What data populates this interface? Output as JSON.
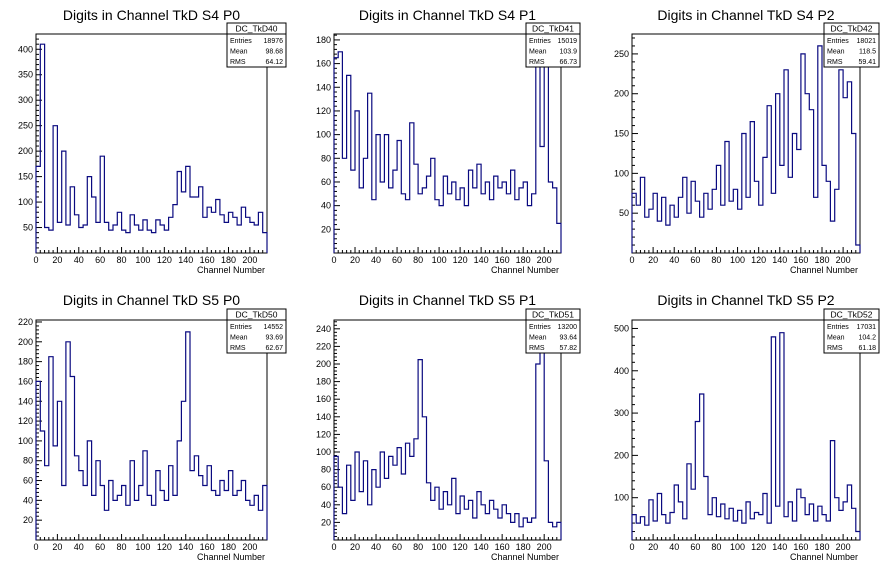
{
  "colors": {
    "line": "#0a0a80",
    "axis": "#000000",
    "background": "#ffffff"
  },
  "chart_data": [
    {
      "type": "histogram",
      "title": "Digits in Channel TkD S4 P0",
      "xlabel": "Channel Number",
      "xlim": [
        0,
        216
      ],
      "ylim": [
        0,
        430
      ],
      "xticks": [
        "0",
        "20",
        "40",
        "60",
        "80",
        "100",
        "120",
        "140",
        "160",
        "180",
        "200"
      ],
      "yticks": [
        "50",
        "100",
        "150",
        "200",
        "250",
        "300",
        "350",
        "400"
      ],
      "stats": {
        "name": "DC_TkD40",
        "entries_label": "Entries",
        "entries": "18976",
        "mean_label": "Mean",
        "mean": "98.68",
        "rms_label": "RMS",
        "rms": "64.12"
      },
      "x": [
        0,
        4,
        8,
        12,
        16,
        20,
        24,
        28,
        32,
        36,
        40,
        44,
        48,
        52,
        56,
        60,
        64,
        68,
        72,
        76,
        80,
        84,
        88,
        92,
        96,
        100,
        104,
        108,
        112,
        116,
        120,
        124,
        128,
        132,
        136,
        140,
        144,
        148,
        152,
        156,
        160,
        164,
        168,
        172,
        176,
        180,
        184,
        188,
        192,
        196,
        200,
        204,
        208,
        212
      ],
      "values": [
        170,
        410,
        50,
        45,
        250,
        60,
        200,
        55,
        130,
        75,
        50,
        55,
        150,
        110,
        60,
        190,
        60,
        45,
        55,
        80,
        45,
        40,
        75,
        55,
        45,
        65,
        45,
        40,
        65,
        55,
        45,
        70,
        95,
        160,
        120,
        170,
        110,
        110,
        130,
        70,
        90,
        80,
        105,
        75,
        60,
        80,
        70,
        55,
        90,
        70,
        60,
        55,
        80,
        40
      ]
    },
    {
      "type": "histogram",
      "title": "Digits in Channel TkD S4 P1",
      "xlabel": "Channel Number",
      "xlim": [
        0,
        216
      ],
      "ylim": [
        0,
        185
      ],
      "xticks": [
        "0",
        "20",
        "40",
        "60",
        "80",
        "100",
        "120",
        "140",
        "160",
        "180",
        "200"
      ],
      "yticks": [
        "20",
        "40",
        "60",
        "80",
        "100",
        "120",
        "140",
        "160",
        "180"
      ],
      "stats": {
        "name": "DC_TkD41",
        "entries_label": "Entries",
        "entries": "15019",
        "mean_label": "Mean",
        "mean": "103.9",
        "rms_label": "RMS",
        "rms": "66.73"
      },
      "x": [
        0,
        4,
        8,
        12,
        16,
        20,
        24,
        28,
        32,
        36,
        40,
        44,
        48,
        52,
        56,
        60,
        64,
        68,
        72,
        76,
        80,
        84,
        88,
        92,
        96,
        100,
        104,
        108,
        112,
        116,
        120,
        124,
        128,
        132,
        136,
        140,
        144,
        148,
        152,
        156,
        160,
        164,
        168,
        172,
        176,
        180,
        184,
        188,
        192,
        196,
        200,
        204,
        208,
        212
      ],
      "values": [
        165,
        170,
        80,
        150,
        70,
        120,
        55,
        80,
        135,
        45,
        100,
        60,
        100,
        55,
        70,
        95,
        50,
        45,
        110,
        75,
        50,
        55,
        65,
        80,
        45,
        40,
        65,
        50,
        60,
        45,
        55,
        40,
        70,
        55,
        75,
        50,
        60,
        45,
        65,
        55,
        60,
        50,
        70,
        45,
        55,
        60,
        40,
        50,
        170,
        90,
        160,
        60,
        55,
        25
      ]
    },
    {
      "type": "histogram",
      "title": "Digits in Channel TkD S4 P2",
      "xlabel": "Channel Number",
      "xlim": [
        0,
        216
      ],
      "ylim": [
        0,
        275
      ],
      "xticks": [
        "0",
        "20",
        "40",
        "60",
        "80",
        "100",
        "120",
        "140",
        "160",
        "180",
        "200"
      ],
      "yticks": [
        "50",
        "100",
        "150",
        "200",
        "250"
      ],
      "stats": {
        "name": "DC_TkD42",
        "entries_label": "Entries",
        "entries": "18021",
        "mean_label": "Mean",
        "mean": "118.5",
        "rms_label": "RMS",
        "rms": "59.41"
      },
      "x": [
        0,
        4,
        8,
        12,
        16,
        20,
        24,
        28,
        32,
        36,
        40,
        44,
        48,
        52,
        56,
        60,
        64,
        68,
        72,
        76,
        80,
        84,
        88,
        92,
        96,
        100,
        104,
        108,
        112,
        116,
        120,
        124,
        128,
        132,
        136,
        140,
        144,
        148,
        152,
        156,
        160,
        164,
        168,
        172,
        176,
        180,
        184,
        188,
        192,
        196,
        200,
        204,
        208,
        212
      ],
      "values": [
        75,
        60,
        95,
        45,
        55,
        75,
        40,
        70,
        35,
        60,
        45,
        70,
        95,
        50,
        90,
        65,
        45,
        75,
        55,
        80,
        110,
        60,
        140,
        65,
        80,
        55,
        150,
        70,
        165,
        90,
        60,
        120,
        185,
        75,
        200,
        110,
        230,
        95,
        150,
        130,
        250,
        200,
        180,
        70,
        260,
        110,
        90,
        40,
        80,
        230,
        195,
        215,
        150,
        10
      ]
    },
    {
      "type": "histogram",
      "title": "Digits in Channel TkD S5 P0",
      "xlabel": "Channel Number",
      "xlim": [
        0,
        216
      ],
      "ylim": [
        0,
        222
      ],
      "xticks": [
        "0",
        "20",
        "40",
        "60",
        "80",
        "100",
        "120",
        "140",
        "160",
        "180",
        "200"
      ],
      "yticks": [
        "20",
        "40",
        "60",
        "80",
        "100",
        "120",
        "140",
        "160",
        "180",
        "200",
        "220"
      ],
      "stats": {
        "name": "DC_TkD50",
        "entries_label": "Entries",
        "entries": "14552",
        "mean_label": "Mean",
        "mean": "93.69",
        "rms_label": "RMS",
        "rms": "62.67"
      },
      "x": [
        0,
        4,
        8,
        12,
        16,
        20,
        24,
        28,
        32,
        36,
        40,
        44,
        48,
        52,
        56,
        60,
        64,
        68,
        72,
        76,
        80,
        84,
        88,
        92,
        96,
        100,
        104,
        108,
        112,
        116,
        120,
        124,
        128,
        132,
        136,
        140,
        144,
        148,
        152,
        156,
        160,
        164,
        168,
        172,
        176,
        180,
        184,
        188,
        192,
        196,
        200,
        204,
        208,
        212
      ],
      "values": [
        160,
        110,
        75,
        185,
        95,
        140,
        55,
        200,
        165,
        85,
        70,
        55,
        100,
        45,
        80,
        55,
        30,
        60,
        40,
        45,
        55,
        35,
        80,
        40,
        55,
        90,
        45,
        35,
        70,
        50,
        40,
        75,
        45,
        100,
        140,
        210,
        70,
        85,
        65,
        55,
        75,
        50,
        45,
        60,
        50,
        70,
        45,
        50,
        60,
        40,
        35,
        45,
        30,
        55
      ]
    },
    {
      "type": "histogram",
      "title": "Digits in Channel TkD S5 P1",
      "xlabel": "Channel Number",
      "xlim": [
        0,
        216
      ],
      "ylim": [
        0,
        250
      ],
      "xticks": [
        "0",
        "20",
        "40",
        "60",
        "80",
        "100",
        "120",
        "140",
        "160",
        "180",
        "200"
      ],
      "yticks": [
        "20",
        "40",
        "60",
        "80",
        "100",
        "120",
        "140",
        "160",
        "180",
        "200",
        "220",
        "240"
      ],
      "stats": {
        "name": "DC_TkD51",
        "entries_label": "Entries",
        "entries": "13200",
        "mean_label": "Mean",
        "mean": "93.64",
        "rms_label": "RMS",
        "rms": "57.82"
      },
      "x": [
        0,
        4,
        8,
        12,
        16,
        20,
        24,
        28,
        32,
        36,
        40,
        44,
        48,
        52,
        56,
        60,
        64,
        68,
        72,
        76,
        80,
        84,
        88,
        92,
        96,
        100,
        104,
        108,
        112,
        116,
        120,
        124,
        128,
        132,
        136,
        140,
        144,
        148,
        152,
        156,
        160,
        164,
        168,
        172,
        176,
        180,
        184,
        188,
        192,
        196,
        200,
        204,
        208,
        212
      ],
      "values": [
        95,
        60,
        30,
        85,
        45,
        100,
        55,
        90,
        40,
        80,
        60,
        100,
        70,
        95,
        85,
        105,
        75,
        110,
        95,
        115,
        205,
        140,
        65,
        45,
        60,
        35,
        55,
        40,
        70,
        30,
        50,
        35,
        45,
        25,
        55,
        40,
        30,
        45,
        35,
        25,
        40,
        30,
        20,
        30,
        15,
        25,
        20,
        25,
        200,
        240,
        90,
        20,
        15,
        20
      ]
    },
    {
      "type": "histogram",
      "title": "Digits in Channel TkD S5 P2",
      "xlabel": "Channel Number",
      "xlim": [
        0,
        216
      ],
      "ylim": [
        0,
        520
      ],
      "xticks": [
        "0",
        "20",
        "40",
        "60",
        "80",
        "100",
        "120",
        "140",
        "160",
        "180",
        "200"
      ],
      "yticks": [
        "100",
        "200",
        "300",
        "400",
        "500"
      ],
      "stats": {
        "name": "DC_TkD52",
        "entries_label": "Entries",
        "entries": "17031",
        "mean_label": "Mean",
        "mean": "104.2",
        "rms_label": "RMS",
        "rms": "61.18"
      },
      "x": [
        0,
        4,
        8,
        12,
        16,
        20,
        24,
        28,
        32,
        36,
        40,
        44,
        48,
        52,
        56,
        60,
        64,
        68,
        72,
        76,
        80,
        84,
        88,
        92,
        96,
        100,
        104,
        108,
        112,
        116,
        120,
        124,
        128,
        132,
        136,
        140,
        144,
        148,
        152,
        156,
        160,
        164,
        168,
        172,
        176,
        180,
        184,
        188,
        192,
        196,
        200,
        204,
        208,
        212
      ],
      "values": [
        60,
        40,
        55,
        35,
        95,
        45,
        110,
        60,
        40,
        65,
        130,
        90,
        50,
        180,
        120,
        280,
        345,
        150,
        60,
        100,
        55,
        85,
        50,
        75,
        45,
        70,
        40,
        90,
        50,
        65,
        60,
        110,
        40,
        480,
        80,
        490,
        55,
        90,
        45,
        120,
        100,
        60,
        85,
        45,
        80,
        60,
        45,
        235,
        100,
        70,
        90,
        130,
        75,
        20
      ]
    }
  ]
}
